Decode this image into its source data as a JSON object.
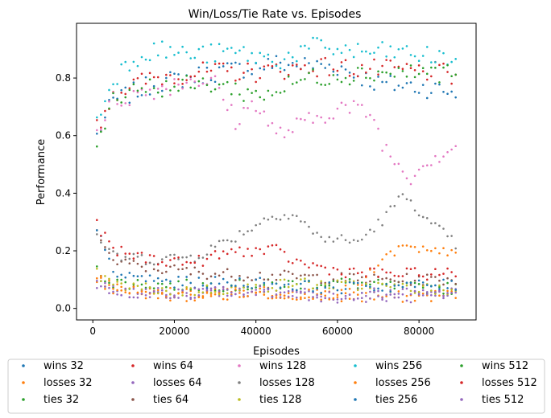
{
  "chart_data": {
    "type": "scatter",
    "title": "Win/Loss/Tie Rate vs. Episodes",
    "xlabel": "Episodes",
    "ylabel": "Performance",
    "xlim": [
      -4000,
      94000
    ],
    "ylim": [
      -0.04,
      0.99
    ],
    "xticks": [
      0,
      20000,
      40000,
      60000,
      80000
    ],
    "yticks": [
      0.0,
      0.2,
      0.4,
      0.6,
      0.8
    ],
    "xtick_labels": [
      "0",
      "20000",
      "40000",
      "60000",
      "80000"
    ],
    "ytick_labels": [
      "0.0",
      "0.2",
      "0.4",
      "0.6",
      "0.8"
    ],
    "grid": false,
    "legend_position": "below plot, 5 columns",
    "x_start": 1000,
    "x_step": 1000,
    "series": [
      {
        "name": "wins 32",
        "color": "#1f77b4",
        "anchors": [
          [
            1000,
            0.6
          ],
          [
            5000,
            0.72
          ],
          [
            15000,
            0.78
          ],
          [
            30000,
            0.82
          ],
          [
            45000,
            0.85
          ],
          [
            60000,
            0.84
          ],
          [
            70000,
            0.78
          ],
          [
            80000,
            0.77
          ],
          [
            89000,
            0.75
          ]
        ]
      },
      {
        "name": "losses 32",
        "color": "#ff7f0e",
        "anchors": [
          [
            1000,
            0.1
          ],
          [
            5000,
            0.07
          ],
          [
            20000,
            0.05
          ],
          [
            40000,
            0.06
          ],
          [
            60000,
            0.04
          ],
          [
            80000,
            0.04
          ],
          [
            89000,
            0.05
          ]
        ]
      },
      {
        "name": "ties 32",
        "color": "#2ca02c",
        "anchors": [
          [
            1000,
            0.13
          ],
          [
            5000,
            0.09
          ],
          [
            20000,
            0.08
          ],
          [
            40000,
            0.08
          ],
          [
            60000,
            0.09
          ],
          [
            80000,
            0.07
          ],
          [
            89000,
            0.07
          ]
        ]
      },
      {
        "name": "wins 64",
        "color": "#d62728",
        "anchors": [
          [
            1000,
            0.63
          ],
          [
            5000,
            0.75
          ],
          [
            15000,
            0.8
          ],
          [
            25000,
            0.82
          ],
          [
            40000,
            0.82
          ],
          [
            55000,
            0.84
          ],
          [
            70000,
            0.83
          ],
          [
            85000,
            0.82
          ],
          [
            89000,
            0.8
          ]
        ]
      },
      {
        "name": "losses 64",
        "color": "#9467bd",
        "anchors": [
          [
            1000,
            0.08
          ],
          [
            5000,
            0.06
          ],
          [
            20000,
            0.05
          ],
          [
            40000,
            0.06
          ],
          [
            60000,
            0.05
          ],
          [
            80000,
            0.05
          ],
          [
            89000,
            0.05
          ]
        ]
      },
      {
        "name": "ties 64",
        "color": "#8c564b",
        "anchors": [
          [
            1000,
            0.28
          ],
          [
            5000,
            0.16
          ],
          [
            15000,
            0.14
          ],
          [
            30000,
            0.12
          ],
          [
            50000,
            0.11
          ],
          [
            70000,
            0.1
          ],
          [
            89000,
            0.1
          ]
        ]
      },
      {
        "name": "wins 128",
        "color": "#e377c2",
        "anchors": [
          [
            1000,
            0.62
          ],
          [
            5000,
            0.72
          ],
          [
            15000,
            0.76
          ],
          [
            25000,
            0.8
          ],
          [
            30000,
            0.78
          ],
          [
            35000,
            0.65
          ],
          [
            40000,
            0.72
          ],
          [
            45000,
            0.6
          ],
          [
            50000,
            0.63
          ],
          [
            55000,
            0.66
          ],
          [
            60000,
            0.7
          ],
          [
            68000,
            0.68
          ],
          [
            72000,
            0.55
          ],
          [
            75000,
            0.5
          ],
          [
            78000,
            0.45
          ],
          [
            82000,
            0.52
          ],
          [
            86000,
            0.54
          ],
          [
            89000,
            0.57
          ]
        ]
      },
      {
        "name": "losses 128",
        "color": "#7f7f7f",
        "anchors": [
          [
            1000,
            0.25
          ],
          [
            5000,
            0.18
          ],
          [
            15000,
            0.17
          ],
          [
            25000,
            0.18
          ],
          [
            35000,
            0.25
          ],
          [
            45000,
            0.33
          ],
          [
            50000,
            0.32
          ],
          [
            55000,
            0.25
          ],
          [
            65000,
            0.23
          ],
          [
            72000,
            0.32
          ],
          [
            75000,
            0.38
          ],
          [
            78000,
            0.38
          ],
          [
            82000,
            0.3
          ],
          [
            86000,
            0.26
          ],
          [
            89000,
            0.22
          ]
        ]
      },
      {
        "name": "ties 128",
        "color": "#bcbd22",
        "anchors": [
          [
            1000,
            0.12
          ],
          [
            5000,
            0.08
          ],
          [
            20000,
            0.06
          ],
          [
            40000,
            0.07
          ],
          [
            50000,
            0.09
          ],
          [
            60000,
            0.08
          ],
          [
            80000,
            0.07
          ],
          [
            89000,
            0.06
          ]
        ]
      },
      {
        "name": "wins 256",
        "color": "#17becf",
        "anchors": [
          [
            1000,
            0.65
          ],
          [
            5000,
            0.8
          ],
          [
            10000,
            0.87
          ],
          [
            15000,
            0.9
          ],
          [
            25000,
            0.88
          ],
          [
            35000,
            0.89
          ],
          [
            45000,
            0.86
          ],
          [
            55000,
            0.91
          ],
          [
            65000,
            0.89
          ],
          [
            75000,
            0.89
          ],
          [
            85000,
            0.87
          ],
          [
            89000,
            0.87
          ]
        ]
      },
      {
        "name": "losses 256",
        "color": "#ff7f0e",
        "anchors": [
          [
            1000,
            0.1
          ],
          [
            5000,
            0.07
          ],
          [
            20000,
            0.04
          ],
          [
            40000,
            0.05
          ],
          [
            60000,
            0.05
          ],
          [
            66000,
            0.08
          ],
          [
            70000,
            0.15
          ],
          [
            75000,
            0.21
          ],
          [
            80000,
            0.2
          ],
          [
            85000,
            0.19
          ],
          [
            89000,
            0.21
          ]
        ]
      },
      {
        "name": "ties 256",
        "color": "#1f77b4",
        "anchors": [
          [
            1000,
            0.27
          ],
          [
            5000,
            0.12
          ],
          [
            20000,
            0.09
          ],
          [
            40000,
            0.09
          ],
          [
            60000,
            0.07
          ],
          [
            80000,
            0.08
          ],
          [
            89000,
            0.08
          ]
        ]
      },
      {
        "name": "wins 512",
        "color": "#2ca02c",
        "anchors": [
          [
            1000,
            0.58
          ],
          [
            5000,
            0.73
          ],
          [
            10000,
            0.77
          ],
          [
            20000,
            0.77
          ],
          [
            30000,
            0.78
          ],
          [
            40000,
            0.74
          ],
          [
            46000,
            0.76
          ],
          [
            52000,
            0.8
          ],
          [
            60000,
            0.81
          ],
          [
            70000,
            0.82
          ],
          [
            80000,
            0.82
          ],
          [
            89000,
            0.82
          ]
        ]
      },
      {
        "name": "losses 512",
        "color": "#d62728",
        "anchors": [
          [
            1000,
            0.29
          ],
          [
            5000,
            0.2
          ],
          [
            15000,
            0.17
          ],
          [
            25000,
            0.16
          ],
          [
            35000,
            0.2
          ],
          [
            45000,
            0.2
          ],
          [
            50000,
            0.16
          ],
          [
            60000,
            0.13
          ],
          [
            70000,
            0.12
          ],
          [
            80000,
            0.12
          ],
          [
            89000,
            0.12
          ]
        ]
      },
      {
        "name": "ties 512",
        "color": "#9467bd",
        "anchors": [
          [
            1000,
            0.1
          ],
          [
            5000,
            0.06
          ],
          [
            20000,
            0.05
          ],
          [
            40000,
            0.06
          ],
          [
            60000,
            0.04
          ],
          [
            80000,
            0.04
          ],
          [
            89000,
            0.04
          ]
        ]
      }
    ]
  }
}
